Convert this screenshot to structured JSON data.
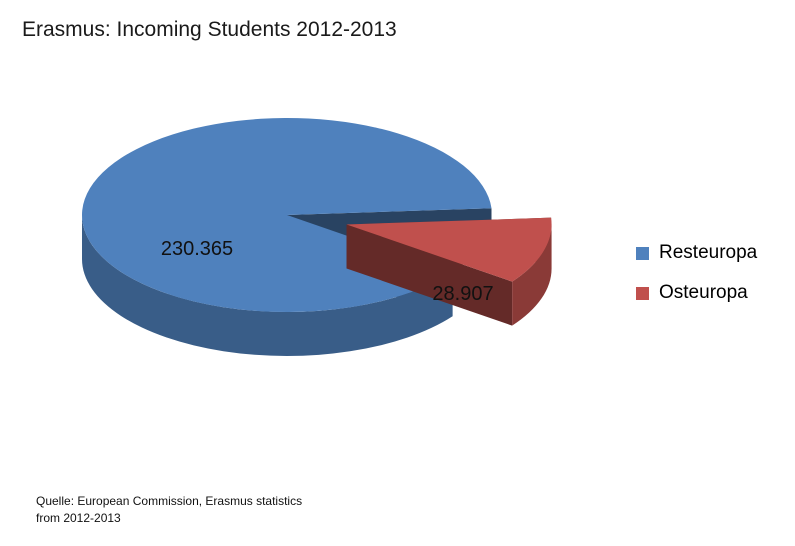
{
  "chart_data": {
    "type": "pie",
    "title": "Erasmus: Incoming Students 2012-2013",
    "categories": [
      "Resteuropa",
      "Osteuropa"
    ],
    "values": [
      230365,
      28907
    ],
    "data_labels": [
      "230.365",
      "28.907"
    ],
    "colors": [
      "#4f81bd",
      "#c0504d"
    ],
    "legend": "right",
    "style": "3D pie, exploded slice"
  },
  "legend": {
    "items": [
      {
        "label": "Resteuropa",
        "color": "#4f81bd"
      },
      {
        "label": "Osteuropa",
        "color": "#c0504d"
      }
    ]
  },
  "source": {
    "line1": "Quelle: European Commission, Erasmus statistics",
    "line2": "from 2012-2013"
  }
}
